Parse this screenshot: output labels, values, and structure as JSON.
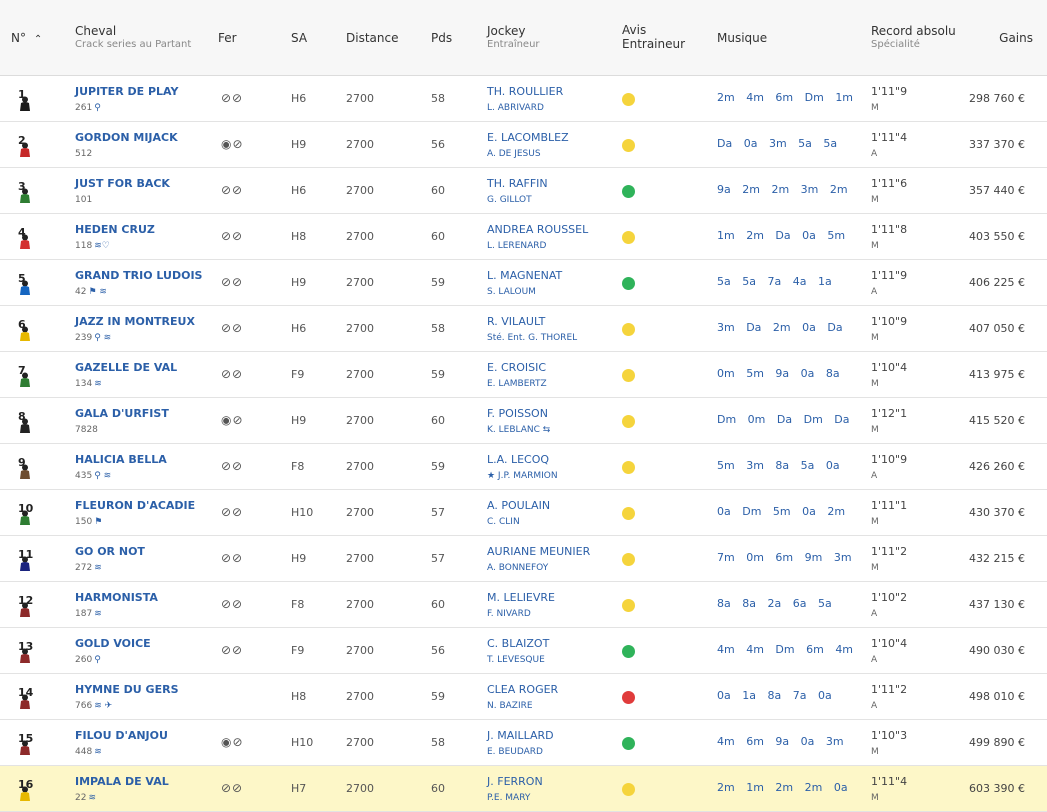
{
  "header": {
    "num": "N°",
    "cheval": "Cheval",
    "cheval_sub": "Crack series au Partant",
    "fer": "Fer",
    "sa": "SA",
    "distance": "Distance",
    "pds": "Pds",
    "jockey": "Jockey",
    "jockey_sub": "Entraîneur",
    "avis_1": "Avis",
    "avis_2": "Entraineur",
    "musique": "Musique",
    "record": "Record absolu",
    "record_sub": "Spécialité",
    "gains": "Gains"
  },
  "rows": [
    {
      "num": "1",
      "name": "JUPITER DE PLAY",
      "crack": "261",
      "crack_icons": "⚲",
      "fer": "⊘⊘",
      "sa": "H6",
      "dist": "2700",
      "pds": "58",
      "jockey": "TH. ROULLIER",
      "trainer": "L. ABRIVARD",
      "avis": "neutral",
      "musique": "2m 4m 6m Dm 1m",
      "record": "1'11\"9",
      "spec": "M",
      "gains": "298 760 €"
    },
    {
      "num": "2",
      "name": "GORDON MIJACK",
      "crack": "512",
      "crack_icons": "",
      "fer": "◉⊘",
      "sa": "H9",
      "dist": "2700",
      "pds": "56",
      "jockey": "E. LACOMBLEZ",
      "trainer": "A. DE JESUS",
      "avis": "neutral",
      "musique": "Da 0a 3m 5a 5a",
      "record": "1'11\"4",
      "spec": "A",
      "gains": "337 370 €"
    },
    {
      "num": "3",
      "name": "JUST FOR BACK",
      "crack": "101",
      "crack_icons": "",
      "fer": "⊘⊘",
      "sa": "H6",
      "dist": "2700",
      "pds": "60",
      "jockey": "TH. RAFFIN",
      "trainer": "G. GILLOT",
      "avis": "good",
      "musique": "9a 2m 2m 3m 2m",
      "record": "1'11\"6",
      "spec": "M",
      "gains": "357 440 €"
    },
    {
      "num": "4",
      "name": "HEDEN CRUZ",
      "crack": "118",
      "crack_icons": "≋♡",
      "fer": "⊘⊘",
      "sa": "H8",
      "dist": "2700",
      "pds": "60",
      "jockey": "ANDREA ROUSSEL",
      "trainer": "L. LERENARD",
      "avis": "neutral",
      "musique": "1m 2m Da 0a 5m",
      "record": "1'11\"8",
      "spec": "M",
      "gains": "403 550 €"
    },
    {
      "num": "5",
      "name": "GRAND TRIO LUDOIS",
      "crack": "42",
      "crack_icons": "⚑ ≋",
      "fer": "⊘⊘",
      "sa": "H9",
      "dist": "2700",
      "pds": "59",
      "jockey": "L. MAGNENAT",
      "trainer": "S. LALOUM",
      "avis": "good",
      "musique": "5a 5a 7a 4a 1a",
      "record": "1'11\"9",
      "spec": "A",
      "gains": "406 225 €"
    },
    {
      "num": "6",
      "name": "JAZZ IN MONTREUX",
      "crack": "239",
      "crack_icons": "⚲ ≋",
      "fer": "⊘⊘",
      "sa": "H6",
      "dist": "2700",
      "pds": "58",
      "jockey": "R. VILAULT",
      "trainer": "Sté. Ent. G. THOREL",
      "avis": "neutral",
      "musique": "3m Da 2m 0a Da",
      "record": "1'10\"9",
      "spec": "M",
      "gains": "407 050 €"
    },
    {
      "num": "7",
      "name": "GAZELLE DE VAL",
      "crack": "134",
      "crack_icons": "≋",
      "fer": "⊘⊘",
      "sa": "F9",
      "dist": "2700",
      "pds": "59",
      "jockey": "E. CROISIC",
      "trainer": "E. LAMBERTZ",
      "avis": "neutral",
      "musique": "0m 5m 9a 0a 8a",
      "record": "1'10\"4",
      "spec": "M",
      "gains": "413 975 €"
    },
    {
      "num": "8",
      "name": "GALA D'URFIST",
      "crack": "7828",
      "crack_icons": "",
      "fer": "◉⊘",
      "sa": "H9",
      "dist": "2700",
      "pds": "60",
      "jockey": "F. POISSON",
      "trainer": "K. LEBLANC ⇆",
      "avis": "neutral",
      "musique": "Dm 0m Da Dm Da",
      "record": "1'12\"1",
      "spec": "M",
      "gains": "415 520 €"
    },
    {
      "num": "9",
      "name": "HALICIA BELLA",
      "crack": "435",
      "crack_icons": "⚲ ≋",
      "fer": "⊘⊘",
      "sa": "F8",
      "dist": "2700",
      "pds": "59",
      "jockey": "L.A. LECOQ",
      "trainer": "★ J.P. MARMION",
      "avis": "neutral",
      "musique": "5m 3m 8a 5a 0a",
      "record": "1'10\"9",
      "spec": "A",
      "gains": "426 260 €"
    },
    {
      "num": "10",
      "name": "FLEURON D'ACADIE",
      "crack": "150",
      "crack_icons": "⚑",
      "fer": "⊘⊘",
      "sa": "H10",
      "dist": "2700",
      "pds": "57",
      "jockey": "A. POULAIN",
      "trainer": "C. CLIN",
      "avis": "neutral",
      "musique": "0a Dm 5m 0a 2m",
      "record": "1'11\"1",
      "spec": "M",
      "gains": "430 370 €"
    },
    {
      "num": "11",
      "name": "GO OR NOT",
      "crack": "272",
      "crack_icons": "≋",
      "fer": "⊘⊘",
      "sa": "H9",
      "dist": "2700",
      "pds": "57",
      "jockey": "AURIANE MEUNIER",
      "trainer": "A. BONNEFOY",
      "avis": "neutral",
      "musique": "7m 0m 6m 9m 3m",
      "record": "1'11\"2",
      "spec": "M",
      "gains": "432 215 €"
    },
    {
      "num": "12",
      "name": "HARMONISTA",
      "crack": "187",
      "crack_icons": "≋",
      "fer": "⊘⊘",
      "sa": "F8",
      "dist": "2700",
      "pds": "60",
      "jockey": "M. LELIEVRE",
      "trainer": "F. NIVARD",
      "avis": "neutral",
      "musique": "8a 8a 2a 6a 5a",
      "record": "1'10\"2",
      "spec": "A",
      "gains": "437 130 €"
    },
    {
      "num": "13",
      "name": "GOLD VOICE",
      "crack": "260",
      "crack_icons": "⚲",
      "fer": "⊘⊘",
      "sa": "F9",
      "dist": "2700",
      "pds": "56",
      "jockey": "C. BLAIZOT",
      "trainer": "T. LEVESQUE",
      "avis": "good",
      "musique": "4m 4m Dm 6m 4m",
      "record": "1'10\"4",
      "spec": "A",
      "gains": "490 030 €"
    },
    {
      "num": "14",
      "name": "HYMNE DU GERS",
      "crack": "766",
      "crack_icons": "≋ ✈",
      "fer": "",
      "sa": "H8",
      "dist": "2700",
      "pds": "59",
      "jockey": "CLEA ROGER",
      "trainer": "N. BAZIRE",
      "avis": "bad",
      "musique": "0a 1a 8a 7a 0a",
      "record": "1'11\"2",
      "spec": "A",
      "gains": "498 010 €"
    },
    {
      "num": "15",
      "name": "FILOU D'ANJOU",
      "crack": "448",
      "crack_icons": "≋",
      "fer": "◉⊘",
      "sa": "H10",
      "dist": "2700",
      "pds": "58",
      "jockey": "J. MAILLARD",
      "trainer": "E. BEUDARD",
      "avis": "good",
      "musique": "4m 6m 9a 0a 3m",
      "record": "1'10\"3",
      "spec": "M",
      "gains": "499 890 €"
    },
    {
      "num": "16",
      "name": "IMPALA DE VAL",
      "crack": "22",
      "crack_icons": "≋",
      "fer": "⊘⊘",
      "sa": "H7",
      "dist": "2700",
      "pds": "60",
      "jockey": "J. FERRON",
      "trainer": "P.E. MARY",
      "avis": "neutral",
      "musique": "2m 1m 2m 2m 0a",
      "record": "1'11\"4",
      "spec": "M",
      "gains": "603 390 €"
    }
  ],
  "silk_colors": [
    "#1a1a1a",
    "#c62828",
    "#2e7d32",
    "#d32f2f",
    "#1565c0",
    "#e6b800",
    "#2e7d32",
    "#222222",
    "#6d4c2f",
    "#2e7d32",
    "#1a237e",
    "#8d2a2a",
    "#8d2a2a",
    "#8d2a2a",
    "#8d2a2a",
    "#e6b800"
  ],
  "highlight_row": "16"
}
